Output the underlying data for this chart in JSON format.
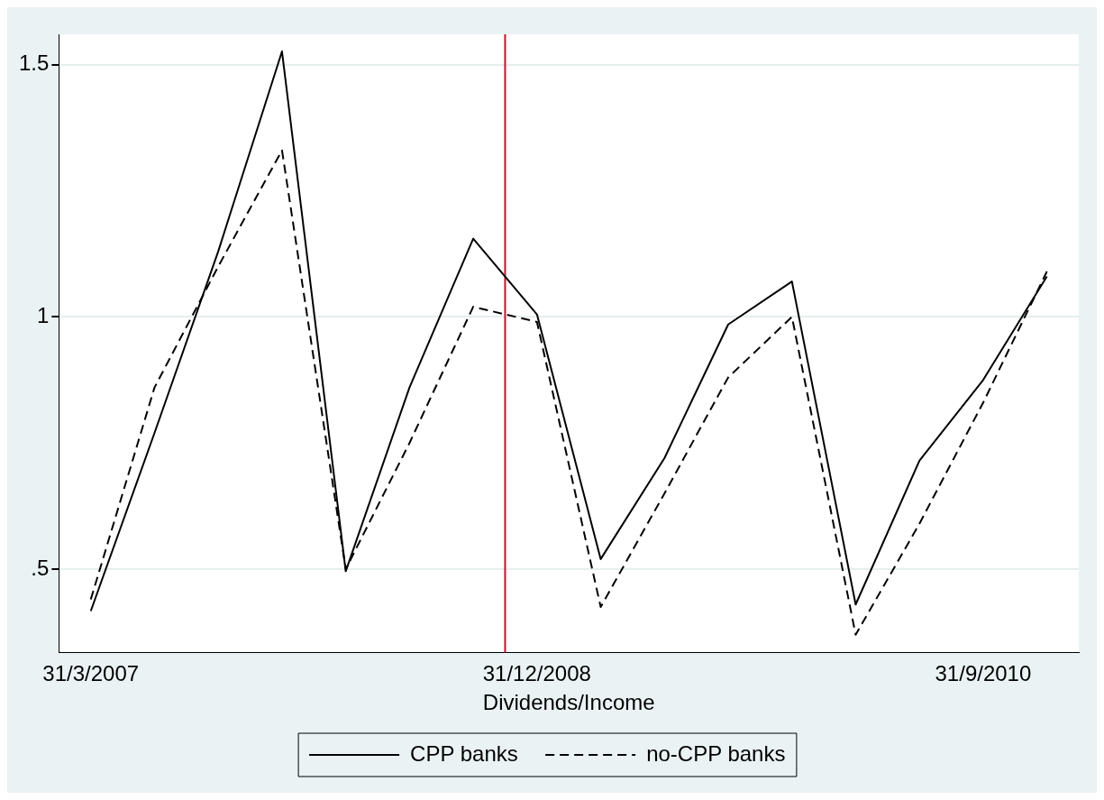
{
  "chart_data": {
    "type": "line",
    "xlabel": "Dividends/Income",
    "categories": [
      "31/3/2007",
      null,
      null,
      null,
      null,
      null,
      null,
      "31/12/2008",
      null,
      null,
      null,
      null,
      null,
      null,
      "31/9/2010",
      null
    ],
    "ylim": [
      0.335,
      1.56
    ],
    "yticks": [
      {
        "value": 0.5,
        "label": ".5"
      },
      1,
      1.5
    ],
    "grid": "y",
    "legend": "bottom",
    "marker": "none",
    "series": [
      {
        "name": "CPP banks",
        "color": "#000000",
        "line_style": "solid",
        "values": [
          0.417,
          0.77,
          1.13,
          1.526,
          0.496,
          0.86,
          1.155,
          1.005,
          0.52,
          0.72,
          0.985,
          1.07,
          0.43,
          0.715,
          0.875,
          1.08
        ]
      },
      {
        "name": "no-CPP banks",
        "color": "#000000",
        "line_style": "dashed",
        "values": [
          0.44,
          0.86,
          1.1,
          1.33,
          0.5,
          0.75,
          1.02,
          0.99,
          0.425,
          0.65,
          0.88,
          1.0,
          0.37,
          0.59,
          0.83,
          1.09
        ]
      }
    ]
  }
}
